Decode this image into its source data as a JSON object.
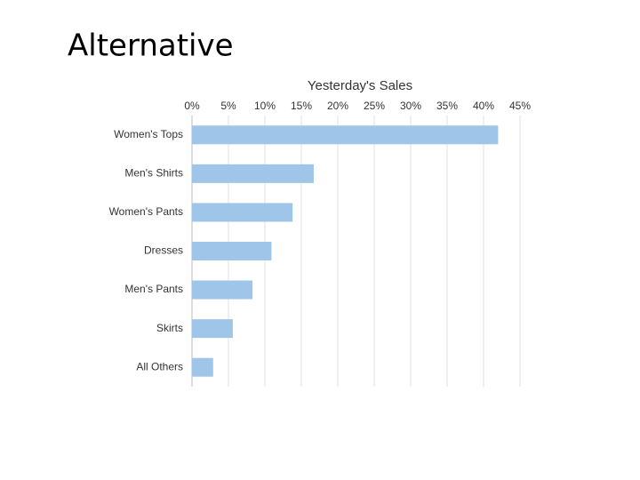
{
  "heading": "Alternative",
  "chart_data": {
    "type": "bar",
    "orientation": "horizontal",
    "title": "Yesterday's Sales",
    "categories": [
      "Women's Tops",
      "Men's Shirts",
      "Women's Pants",
      "Dresses",
      "Men's Pants",
      "Skirts",
      "All Others"
    ],
    "values": [
      42,
      16.7,
      13.8,
      10.9,
      8.3,
      5.6,
      2.9
    ],
    "color": "#9fc5e8",
    "xlim": [
      0,
      45
    ],
    "xticks": [
      {
        "value": 0,
        "label": "0%"
      },
      {
        "value": 5,
        "label": "5%"
      },
      {
        "value": 10,
        "label": "10%"
      },
      {
        "value": 15,
        "label": "15%"
      },
      {
        "value": 20,
        "label": "20%"
      },
      {
        "value": 25,
        "label": "25%"
      },
      {
        "value": 30,
        "label": "30%"
      },
      {
        "value": 35,
        "label": "35%"
      },
      {
        "value": 40,
        "label": "40%"
      },
      {
        "value": 45,
        "label": "45%"
      }
    ],
    "grid": true
  }
}
